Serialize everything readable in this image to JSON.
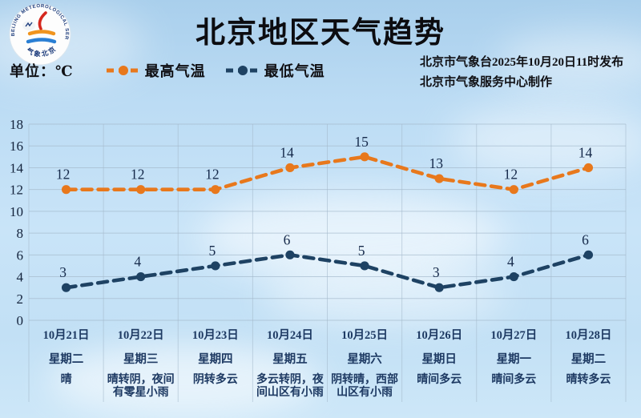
{
  "header": {
    "title": "北京地区天气趋势",
    "unit_label": "单位：℃",
    "issued_line1": "北京市气象台2025年10月20日11时发布",
    "issued_line2": "北京市气象服务中心制作",
    "logo": {
      "ring_text": "BEIJING METEOROLOGICAL SERVICE",
      "ring_bottom_text": "气象北京"
    }
  },
  "legend": [
    {
      "label": "最高气温",
      "color": "#e8781c"
    },
    {
      "label": "最低气温",
      "color": "#1e4263"
    }
  ],
  "colors": {
    "high_line": "#e8781c",
    "low_line": "#1e4263",
    "grid": "#a3b8ca",
    "data_label": "#15294a",
    "tick_label": "#14233c"
  },
  "chart_data": {
    "type": "line",
    "title": "北京地区天气趋势",
    "ylabel": "℃",
    "ylim": [
      0,
      18
    ],
    "ytick_step": 2,
    "yticks": [
      0,
      2,
      4,
      6,
      8,
      10,
      12,
      14,
      16,
      18
    ],
    "grid": true,
    "legend_position": "top-left",
    "x": [
      "10月21日",
      "10月22日",
      "10月23日",
      "10月24日",
      "10月25日",
      "10月26日",
      "10月27日",
      "10月28日"
    ],
    "series": [
      {
        "name": "最高气温",
        "color": "#e8781c",
        "values": [
          12,
          12,
          12,
          14,
          15,
          13,
          12,
          14
        ]
      },
      {
        "name": "最低气温",
        "color": "#1e4263",
        "values": [
          3,
          4,
          5,
          6,
          5,
          3,
          4,
          6
        ]
      }
    ],
    "days": [
      {
        "date": "10月21日",
        "weekday": "星期二",
        "weather": "晴"
      },
      {
        "date": "10月22日",
        "weekday": "星期三",
        "weather": "晴转阴，夜间有零星小雨"
      },
      {
        "date": "10月23日",
        "weekday": "星期四",
        "weather": "阴转多云"
      },
      {
        "date": "10月24日",
        "weekday": "星期五",
        "weather": "多云转阴，夜间山区有小雨"
      },
      {
        "date": "10月25日",
        "weekday": "星期六",
        "weather": "阴转晴，西部山区有小雨"
      },
      {
        "date": "10月26日",
        "weekday": "星期日",
        "weather": "晴间多云"
      },
      {
        "date": "10月27日",
        "weekday": "星期一",
        "weather": "晴间多云"
      },
      {
        "date": "10月28日",
        "weekday": "星期二",
        "weather": "晴转多云"
      }
    ]
  }
}
